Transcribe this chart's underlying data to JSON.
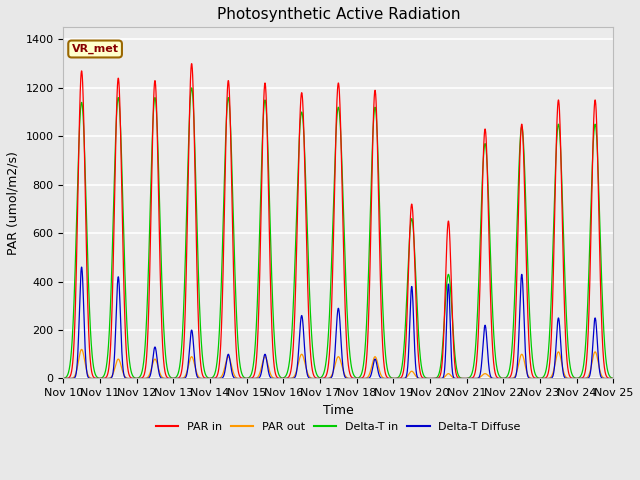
{
  "title": "Photosynthetic Active Radiation",
  "xlabel": "Time",
  "ylabel": "PAR (umol/m2/s)",
  "ylim": [
    0,
    1450
  ],
  "xlim": [
    0,
    15
  ],
  "annotation_text": "VR_met",
  "annotation_bg": "#ffffcc",
  "annotation_border": "#996600",
  "background_color": "#e8e8e8",
  "plot_bg": "#ebebeb",
  "legend_entries": [
    "PAR in",
    "PAR out",
    "Delta-T in",
    "Delta-T Diffuse"
  ],
  "legend_colors": [
    "#ff0000",
    "#ff9900",
    "#00cc00",
    "#0000cc"
  ],
  "grid_color": "#ffffff",
  "tick_labels": [
    "Nov 10",
    "Nov 11",
    "Nov 12",
    "Nov 13",
    "Nov 14",
    "Nov 15",
    "Nov 16",
    "Nov 17",
    "Nov 18",
    "Nov 19",
    "Nov 20",
    "Nov 21",
    "Nov 22",
    "Nov 23",
    "Nov 24",
    "Nov 25"
  ]
}
